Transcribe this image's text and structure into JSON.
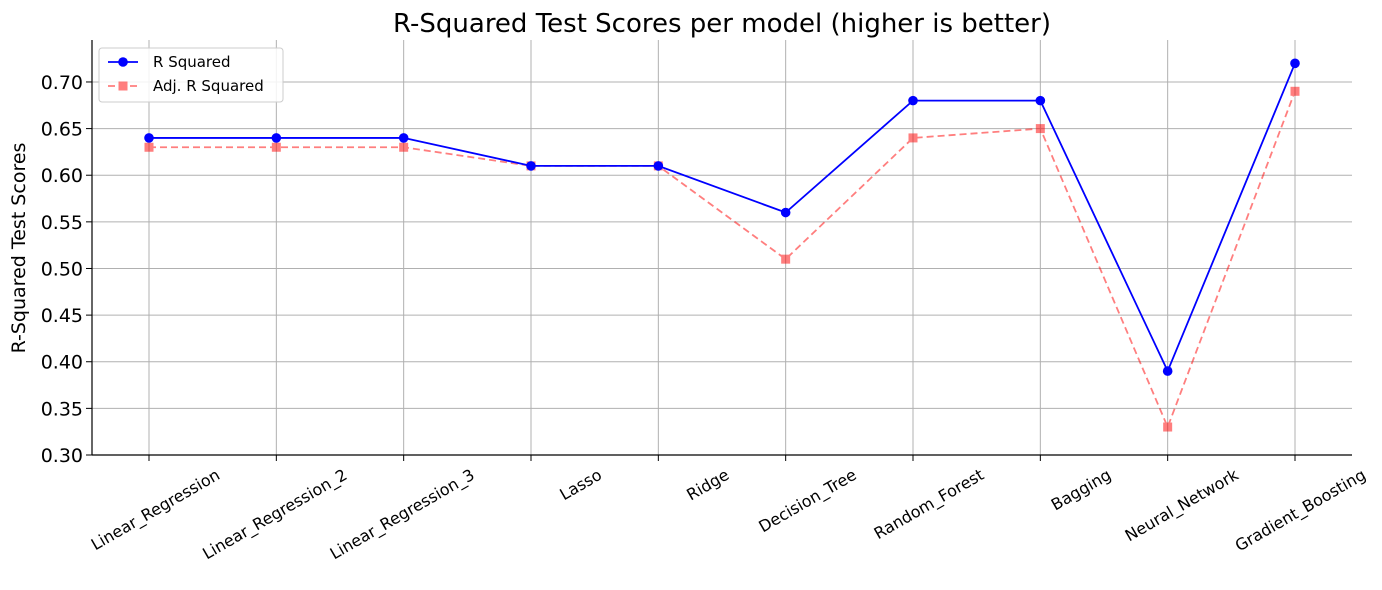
{
  "chart_data": {
    "type": "line",
    "title": "R-Squared Test Scores per model (higher is better)",
    "xlabel": "",
    "ylabel": "R-Squared Test Scores",
    "categories": [
      "Linear_Regression",
      "Linear_Regression_2",
      "Linear_Regression_3",
      "Lasso",
      "Ridge",
      "Decision_Tree",
      "Random_Forest",
      "Bagging",
      "Neural_Network",
      "Gradient_Boosting"
    ],
    "ylim": [
      0.3,
      0.745
    ],
    "yticks": [
      "0.30",
      "0.35",
      "0.40",
      "0.45",
      "0.50",
      "0.55",
      "0.60",
      "0.65",
      "0.70"
    ],
    "grid": true,
    "legend_position": "top-left",
    "series": [
      {
        "name": "R Squared",
        "values": [
          0.64,
          0.64,
          0.64,
          0.61,
          0.61,
          0.56,
          0.68,
          0.68,
          0.39,
          0.72
        ],
        "color": "#0000ff",
        "marker": "circle",
        "line_style": "solid"
      },
      {
        "name": "Adj. R Squared",
        "values": [
          0.63,
          0.63,
          0.63,
          0.61,
          0.61,
          0.51,
          0.64,
          0.65,
          0.33,
          0.69
        ],
        "color": "#ff0000",
        "marker": "square",
        "line_style": "dashed",
        "opacity": 0.5
      }
    ]
  }
}
